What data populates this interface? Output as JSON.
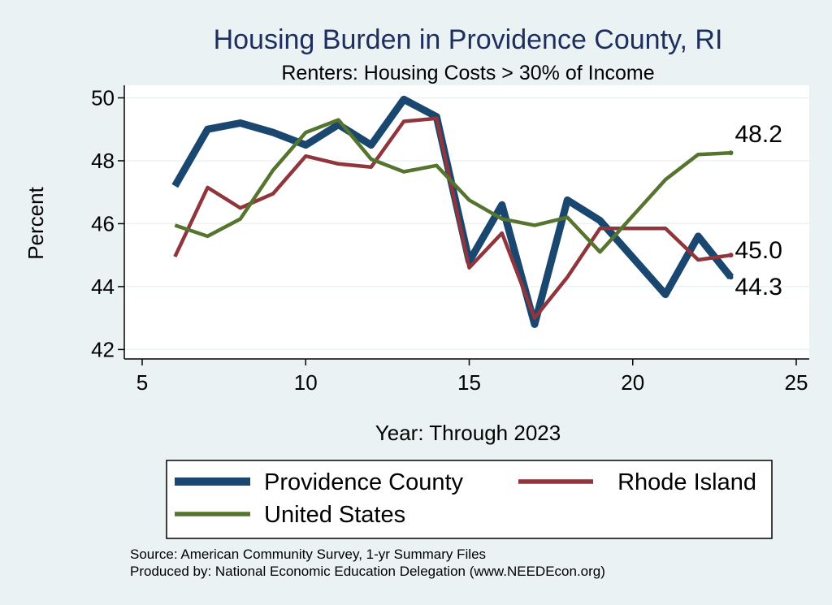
{
  "chart_data": {
    "type": "line",
    "title": "Housing Burden in Providence County, RI",
    "subtitle": "Renters: Housing Costs > 30% of Income",
    "xlabel": "Year: Through 2023",
    "ylabel": "Percent",
    "xlim": [
      5,
      25
    ],
    "ylim": [
      41.7,
      50.4
    ],
    "xticks": [
      5,
      10,
      15,
      20,
      25
    ],
    "yticks": [
      42,
      44,
      46,
      48,
      50
    ],
    "grid": true,
    "legend_position": "bottom",
    "series": [
      {
        "name": "Providence County",
        "color": "#1a476f",
        "x": [
          6,
          7,
          8,
          9,
          10,
          11,
          12,
          13,
          14,
          15,
          16,
          17,
          18,
          19,
          21,
          22,
          23
        ],
        "values": [
          47.2,
          49.0,
          49.2,
          48.9,
          48.5,
          49.15,
          48.5,
          49.95,
          49.4,
          44.8,
          46.6,
          42.8,
          46.75,
          46.1,
          43.75,
          45.6,
          44.3
        ],
        "end_label": "44.3"
      },
      {
        "name": "Rhode Island",
        "color": "#90353b",
        "x": [
          6,
          7,
          8,
          9,
          10,
          11,
          12,
          13,
          14,
          15,
          16,
          17,
          18,
          19,
          21,
          22,
          23
        ],
        "values": [
          44.95,
          47.15,
          46.5,
          46.95,
          48.15,
          47.9,
          47.8,
          49.25,
          49.35,
          44.6,
          45.7,
          43.0,
          44.3,
          45.85,
          45.85,
          44.85,
          45.0
        ],
        "end_label": "45.0"
      },
      {
        "name": "United States",
        "color": "#55752f",
        "x": [
          6,
          7,
          8,
          9,
          10,
          11,
          12,
          13,
          14,
          15,
          16,
          17,
          18,
          19,
          20,
          21,
          22,
          23
        ],
        "values": [
          45.95,
          45.6,
          46.15,
          47.7,
          48.9,
          49.3,
          48.05,
          47.65,
          47.85,
          46.75,
          46.15,
          45.95,
          46.2,
          45.1,
          46.25,
          47.4,
          48.2,
          48.25
        ],
        "end_label": "48.2"
      }
    ],
    "notes": [
      "Source: American Community Survey, 1-yr Summary Files",
      "Produced by: National Economic Education Delegation (www.NEEDEcon.org)"
    ]
  }
}
